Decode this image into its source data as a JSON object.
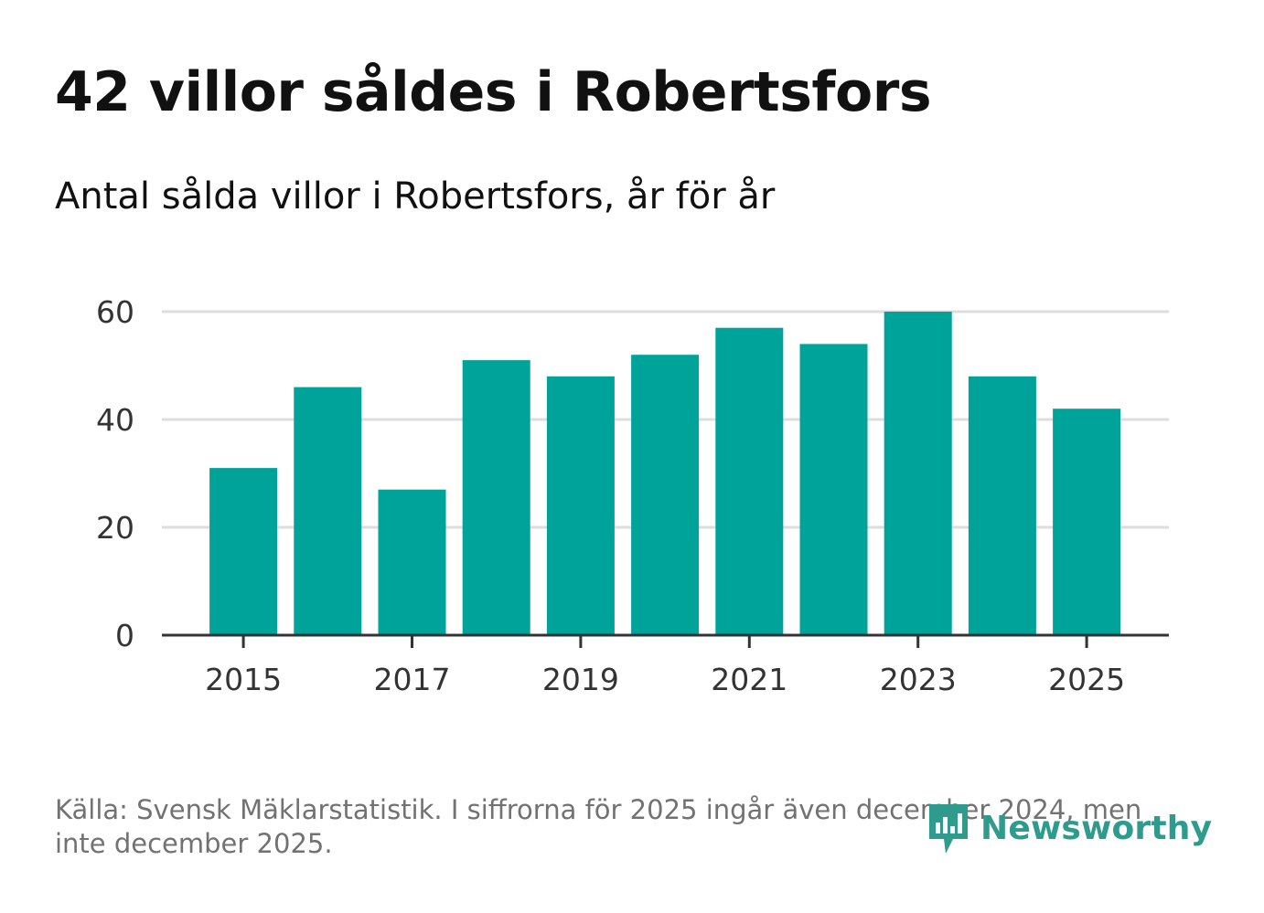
{
  "header": {
    "title": "42 villor såldes i Robertsfors",
    "subtitle": "Antal sålda villor i Robertsfors, år för år"
  },
  "footer": {
    "source": "Källa: Svensk Mäklarstatistik. I siffrorna för 2025 ingår även december 2024, men inte december 2025.",
    "brand": "Newsworthy"
  },
  "colors": {
    "bar": "#00a39a",
    "grid": "#dddddd",
    "axis": "#333333",
    "brand": "#2e9b8d"
  },
  "chart_data": {
    "type": "bar",
    "categories": [
      "2015",
      "2016",
      "2017",
      "2018",
      "2019",
      "2020",
      "2021",
      "2022",
      "2023",
      "2024",
      "2025"
    ],
    "values": [
      31,
      46,
      27,
      51,
      48,
      52,
      57,
      54,
      60,
      48,
      42
    ],
    "x_tick_labels": [
      "2015",
      "2017",
      "2019",
      "2021",
      "2023",
      "2025"
    ],
    "y_ticks": [
      0,
      20,
      40,
      60
    ],
    "ylim": [
      0,
      60
    ],
    "grid": true,
    "xlabel": "",
    "ylabel": ""
  }
}
